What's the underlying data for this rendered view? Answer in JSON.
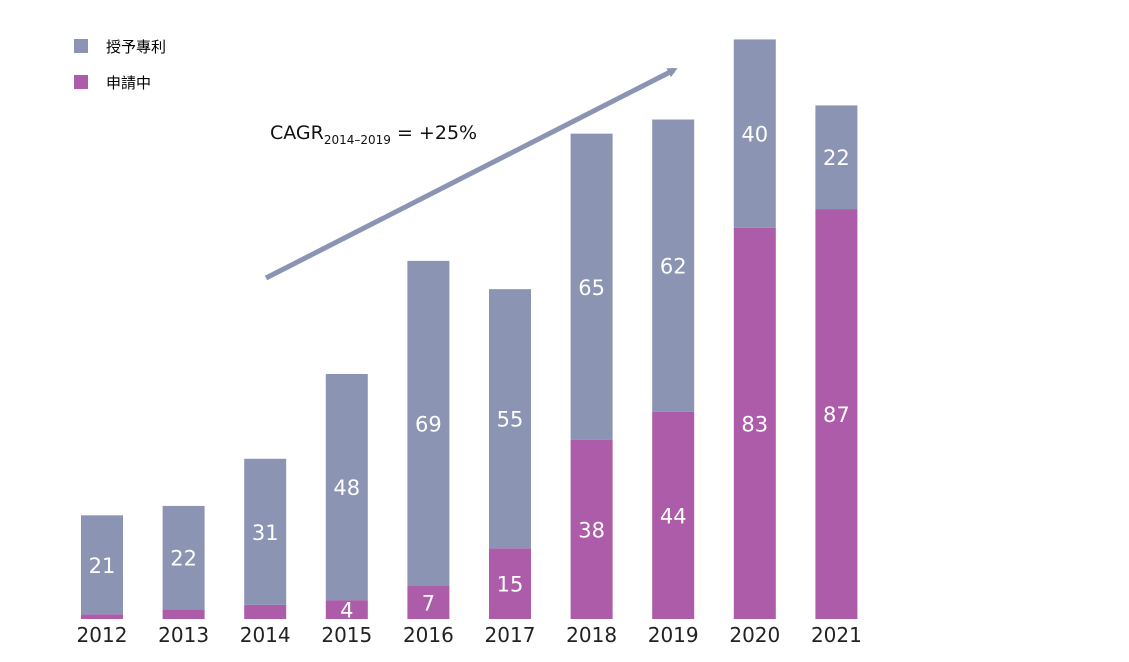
{
  "chart_data": {
    "type": "bar",
    "stacked": true,
    "categories": [
      "2012",
      "2013",
      "2014",
      "2015",
      "2016",
      "2017",
      "2018",
      "2019",
      "2020",
      "2021"
    ],
    "series": [
      {
        "name": "申請中",
        "color": "#ac5ca8",
        "values": [
          1,
          2,
          3,
          4,
          7,
          15,
          38,
          44,
          83,
          87
        ],
        "labels": [
          "",
          "",
          "",
          "4",
          "7",
          "15",
          "38",
          "44",
          "83",
          "87"
        ]
      },
      {
        "name": "授予專利",
        "color": "#8b94b2",
        "values": [
          21,
          22,
          31,
          48,
          69,
          55,
          65,
          62,
          40,
          22
        ],
        "labels": [
          "21",
          "22",
          "31",
          "48",
          "69",
          "55",
          "65",
          "62",
          "40",
          "22"
        ]
      }
    ],
    "ylim": [
      0,
      125
    ],
    "grid": false,
    "legend_position": "top-left",
    "annotation": {
      "main": "CAGR",
      "sub": "2014–2019",
      "rest": " = +25%"
    }
  },
  "legend": [
    {
      "label": "授予專利",
      "color": "#8b94b2"
    },
    {
      "label": "申請中",
      "color": "#ac5ca8"
    }
  ],
  "colors": {
    "arrow": "#8b94b2",
    "text_on_bar": "#ffffff",
    "axis_text": "#222222"
  }
}
